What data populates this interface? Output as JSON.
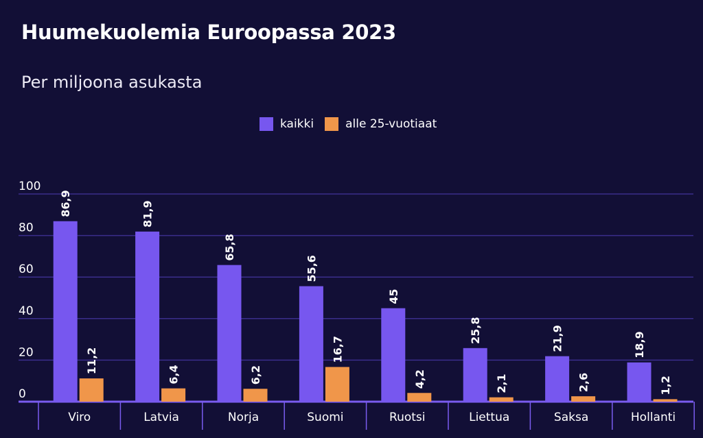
{
  "chart_data": {
    "type": "bar",
    "title": "Huumekuolemia Euroopassa 2023",
    "subtitle": "Per miljoona asukasta",
    "categories": [
      "Viro",
      "Latvia",
      "Norja",
      "Suomi",
      "Ruotsi",
      "Liettua",
      "Saksa",
      "Hollanti"
    ],
    "series": [
      {
        "name": "kaikki",
        "color": "#7757ef",
        "values": [
          86.9,
          81.9,
          65.8,
          55.6,
          45,
          25.8,
          21.9,
          18.9
        ],
        "labels": [
          "86,9",
          "81,9",
          "65,8",
          "55,6",
          "45",
          "25,8",
          "21,9",
          "18,9"
        ]
      },
      {
        "name": "alle 25-vuotiaat",
        "color": "#f0964a",
        "values": [
          11.2,
          6.4,
          6.2,
          16.7,
          4.2,
          2.1,
          2.6,
          1.2
        ],
        "labels": [
          "11,2",
          "6,4",
          "6,2",
          "16,7",
          "4,2",
          "2,1",
          "2,6",
          "1,2"
        ]
      }
    ],
    "ylim": [
      0,
      100
    ],
    "yticks": [
      "0",
      "20",
      "40",
      "60",
      "80",
      "100"
    ],
    "grid": true,
    "legend": "top-center",
    "background": "#120f36"
  }
}
